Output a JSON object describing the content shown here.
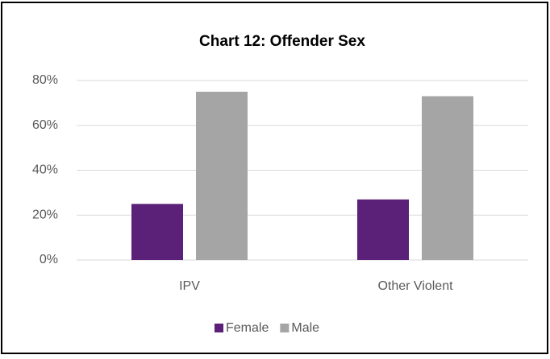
{
  "chart_data": {
    "type": "bar",
    "title": "Chart 12: Offender Sex",
    "categories": [
      "IPV",
      "Other Violent"
    ],
    "series": [
      {
        "name": "Female",
        "color": "#5b2179",
        "values": [
          25,
          27
        ]
      },
      {
        "name": "Male",
        "color": "#a5a5a5",
        "values": [
          75,
          73
        ]
      }
    ],
    "ylim": [
      0,
      80
    ],
    "yticks": [
      {
        "value": 0,
        "label": "0%"
      },
      {
        "value": 20,
        "label": "20%"
      },
      {
        "value": 40,
        "label": "40%"
      },
      {
        "value": 60,
        "label": "60%"
      },
      {
        "value": 80,
        "label": "80%"
      }
    ],
    "grid": true,
    "legend": "bottom"
  }
}
